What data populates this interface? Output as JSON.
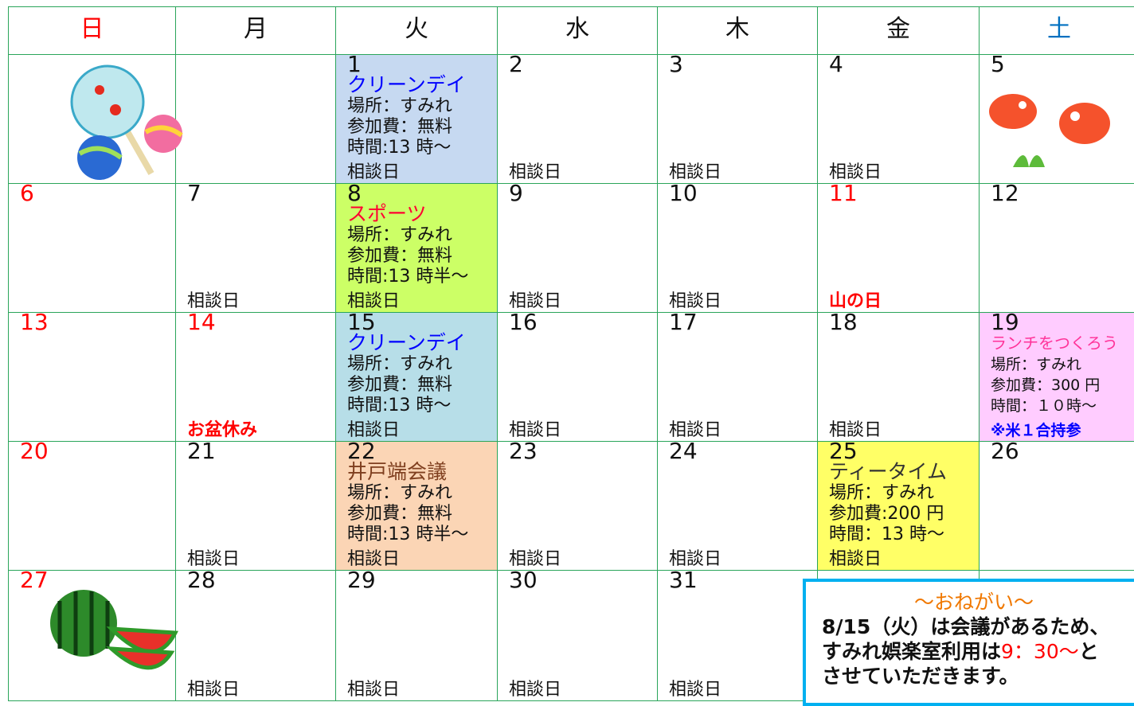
{
  "calendar": {
    "headers": [
      {
        "text": "日",
        "color": "#ff0000"
      },
      {
        "text": "月"
      },
      {
        "text": "火"
      },
      {
        "text": "水"
      },
      {
        "text": "木"
      },
      {
        "text": "金"
      },
      {
        "text": "土",
        "color": "#0070c0"
      }
    ],
    "weeks": [
      [
        {},
        {},
        {
          "day": 1,
          "bg": "#c6d9f1",
          "title": "クリーンデイ",
          "title_color": "#0000ff",
          "lines": [
            "場所：すみれ",
            "参加費：無料",
            "時間:13 時〜"
          ],
          "footer": "相談日"
        },
        {
          "day": 2,
          "footer": "相談日"
        },
        {
          "day": 3,
          "footer": "相談日"
        },
        {
          "day": 4,
          "footer": "相談日"
        },
        {
          "day": 5
        }
      ],
      [
        {
          "day": 6,
          "day_color": "#ff0000"
        },
        {
          "day": 7,
          "footer": "相談日"
        },
        {
          "day": 8,
          "bg": "#ccff66",
          "title": "スポーツ",
          "title_color": "#ff0033",
          "lines": [
            "場所：すみれ",
            "参加費：無料",
            "時間:13 時半〜"
          ],
          "footer": "相談日"
        },
        {
          "day": 9,
          "footer": "相談日"
        },
        {
          "day": 10,
          "footer": "相談日"
        },
        {
          "day": 11,
          "day_color": "#ff0000",
          "footer": "山の日",
          "footer_color": "#ff0000"
        },
        {
          "day": 12
        }
      ],
      [
        {
          "day": 13,
          "day_color": "#ff0000"
        },
        {
          "day": 14,
          "day_color": "#ff0000",
          "footer": "お盆休み",
          "footer_color": "#ff0000"
        },
        {
          "day": 15,
          "bg": "#b7dee8",
          "title": "クリーンデイ",
          "title_color": "#0000ff",
          "lines": [
            "場所：すみれ",
            "参加費：無料",
            "時間:13 時〜"
          ],
          "footer": "相談日"
        },
        {
          "day": 16,
          "footer": "相談日"
        },
        {
          "day": 17,
          "footer": "相談日"
        },
        {
          "day": 18,
          "footer": "相談日"
        },
        {
          "day": 19,
          "bg": "#ffccff",
          "title": "ランチをつくろう",
          "title_color": "#ff3399",
          "lines": [
            "場所：すみれ",
            "参加費：300 円",
            "時間：１０時〜"
          ],
          "footer": "※米１合持参",
          "footer_color": "#0000ff"
        }
      ],
      [
        {
          "day": 20,
          "day_color": "#ff0000"
        },
        {
          "day": 21,
          "footer": "相談日"
        },
        {
          "day": 22,
          "bg": "#fbd5b5",
          "title": "井戸端会議",
          "title_color": "#7f3f1f",
          "lines": [
            "場所：すみれ",
            "参加費：無料",
            "時間:13 時半〜"
          ],
          "footer": "相談日"
        },
        {
          "day": 23,
          "footer": "相談日"
        },
        {
          "day": 24,
          "footer": "相談日"
        },
        {
          "day": 25,
          "bg": "#ffff66",
          "title": "ティータイム",
          "title_color": "#333333",
          "lines": [
            "場所：すみれ",
            "参加費:200 円",
            "時間：13 時〜"
          ],
          "footer": "相談日"
        },
        {
          "day": 26
        }
      ],
      [
        {
          "day": 27,
          "day_color": "#ff0000"
        },
        {
          "day": 28,
          "footer": "相談日"
        },
        {
          "day": 29,
          "footer": "相談日"
        },
        {
          "day": 30,
          "footer": "相談日"
        },
        {
          "day": 31,
          "footer": "相談日"
        }
      ]
    ],
    "notice": {
      "title": "〜おねがい〜",
      "line1": "8/15（火）は会議があるため、",
      "line2_before": "すみれ娯楽室利用は",
      "line2_highlight": "9：30〜",
      "line2_after": "と",
      "line3": "させていただきます。"
    }
  }
}
